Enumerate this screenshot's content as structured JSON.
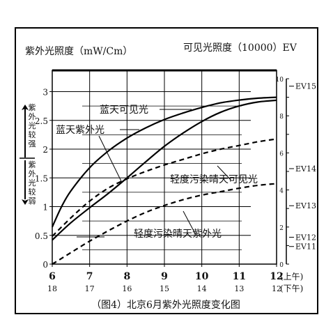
{
  "chart_data": {
    "type": "line",
    "title": "（图4）北京6月紫外光照度变化图",
    "ylabel": "紫外光照度（mW/Cm）",
    "y2label": "可见光照度（10000）EV",
    "strong_label": "紫外光较强",
    "weak_label": "紫外光较弱",
    "x": [
      6,
      7,
      8,
      9,
      10,
      11,
      12
    ],
    "x_sub": [
      "18",
      "17",
      "16",
      "15",
      "14",
      "13",
      "12"
    ],
    "am_label": "(上午)",
    "pm_label": "(下午)",
    "xlim": [
      6,
      12
    ],
    "ylim": [
      0,
      3.2
    ],
    "y_ticks": [
      "0",
      "0.5",
      "1",
      "1.5",
      "2",
      "2.5",
      "3"
    ],
    "y2lim": [
      0,
      10
    ],
    "y2_ticks": [
      "0",
      "2",
      "4",
      "6",
      "8",
      "10"
    ],
    "ev_labels": [
      "EV15",
      "EV14",
      "EV13",
      "EV12",
      "EV11"
    ],
    "grid": true,
    "series": [
      {
        "name": "蓝天可见光",
        "axis": "right",
        "style": "solid",
        "x": [
          6,
          6.25,
          6.5,
          7,
          7.5,
          8,
          8.5,
          9,
          9.5,
          10,
          10.5,
          11,
          11.5,
          12
        ],
        "values": [
          2.0,
          3.1,
          3.95,
          5.2,
          6.1,
          6.8,
          7.35,
          7.8,
          8.15,
          8.45,
          8.7,
          8.85,
          8.95,
          9.0
        ]
      },
      {
        "name": "蓝天紫外光",
        "axis": "left",
        "style": "solid",
        "x": [
          6,
          6.5,
          7,
          7.5,
          8,
          8.5,
          9,
          9.5,
          10,
          10.5,
          11,
          11.5,
          12
        ],
        "values": [
          0.42,
          0.72,
          0.98,
          1.23,
          1.5,
          1.78,
          2.05,
          2.28,
          2.48,
          2.64,
          2.75,
          2.82,
          2.85
        ]
      },
      {
        "name": "轻度污染晴天可见光",
        "axis": "right",
        "style": "dashed",
        "x": [
          6,
          6.5,
          7,
          7.5,
          8,
          8.5,
          9,
          9.5,
          10,
          10.5,
          11,
          11.5,
          12
        ],
        "values": [
          1.5,
          2.5,
          3.4,
          4.1,
          4.6,
          5.0,
          5.35,
          5.65,
          5.95,
          6.2,
          6.4,
          6.6,
          6.75
        ]
      },
      {
        "name": "轻度污染晴天紫外光",
        "axis": "left",
        "style": "dashed",
        "x": [
          6,
          6.5,
          7,
          7.5,
          8,
          8.5,
          9,
          9.5,
          10,
          10.5,
          11,
          11.5,
          12
        ],
        "values": [
          0.0,
          0.2,
          0.4,
          0.58,
          0.75,
          0.9,
          1.02,
          1.12,
          1.2,
          1.26,
          1.32,
          1.37,
          1.4
        ]
      }
    ]
  }
}
